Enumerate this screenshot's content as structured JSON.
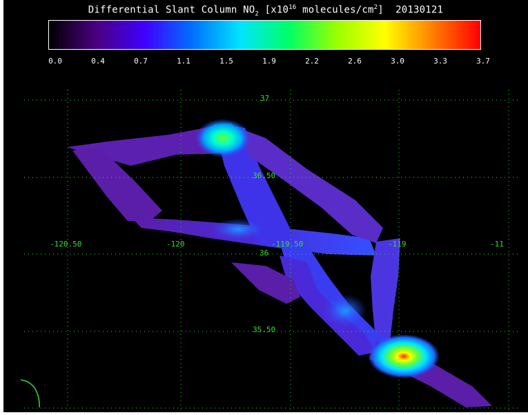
{
  "title": {
    "prefix": "Differential Slant Column NO",
    "subscript": "2",
    "units_open": " [x10",
    "exponent": "16",
    "units_mid": " molecules/cm",
    "units_exp": "2",
    "units_close": "]",
    "date": "20130121"
  },
  "colorbar": {
    "labels": [
      "0.0",
      "0.4",
      "0.7",
      "1.1",
      "1.5",
      "1.9",
      "2.2",
      "2.6",
      "3.0",
      "3.3",
      "3.7"
    ],
    "min": 0.0,
    "max": 3.7,
    "colors": [
      "#000000",
      "#4b0082",
      "#3f00ff",
      "#0070ff",
      "#00e5ff",
      "#00ff66",
      "#9aff00",
      "#ffff00",
      "#ff8000",
      "#ff0000"
    ]
  },
  "grid": {
    "longitude_labels": [
      "-120.50",
      "-120",
      "-119.50",
      "-119",
      "-11"
    ],
    "latitude_labels": [
      "37",
      "36.50",
      "36",
      "35.50"
    ],
    "color": "#33dd33"
  },
  "map": {
    "type": "flight-track NO2 column map",
    "coastline_color": "#33dd33"
  }
}
